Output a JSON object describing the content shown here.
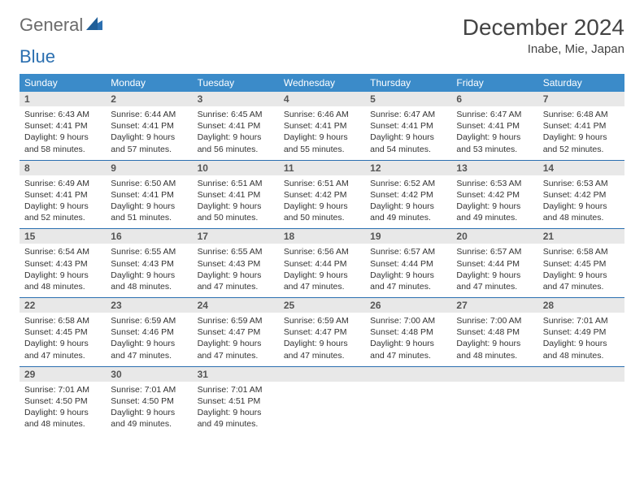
{
  "logo": {
    "general": "General",
    "blue": "Blue"
  },
  "title": "December 2024",
  "location": "Inabe, Mie, Japan",
  "colors": {
    "header_bg": "#3b8bc9",
    "divider": "#2b6fb0",
    "daynum_bg": "#e8e8e8",
    "logo_gray": "#6b6b6b",
    "logo_blue": "#2b6fb0"
  },
  "day_headers": [
    "Sunday",
    "Monday",
    "Tuesday",
    "Wednesday",
    "Thursday",
    "Friday",
    "Saturday"
  ],
  "weeks": [
    [
      {
        "n": "1",
        "sr": "6:43 AM",
        "ss": "4:41 PM",
        "dl": "9 hours and 58 minutes."
      },
      {
        "n": "2",
        "sr": "6:44 AM",
        "ss": "4:41 PM",
        "dl": "9 hours and 57 minutes."
      },
      {
        "n": "3",
        "sr": "6:45 AM",
        "ss": "4:41 PM",
        "dl": "9 hours and 56 minutes."
      },
      {
        "n": "4",
        "sr": "6:46 AM",
        "ss": "4:41 PM",
        "dl": "9 hours and 55 minutes."
      },
      {
        "n": "5",
        "sr": "6:47 AM",
        "ss": "4:41 PM",
        "dl": "9 hours and 54 minutes."
      },
      {
        "n": "6",
        "sr": "6:47 AM",
        "ss": "4:41 PM",
        "dl": "9 hours and 53 minutes."
      },
      {
        "n": "7",
        "sr": "6:48 AM",
        "ss": "4:41 PM",
        "dl": "9 hours and 52 minutes."
      }
    ],
    [
      {
        "n": "8",
        "sr": "6:49 AM",
        "ss": "4:41 PM",
        "dl": "9 hours and 52 minutes."
      },
      {
        "n": "9",
        "sr": "6:50 AM",
        "ss": "4:41 PM",
        "dl": "9 hours and 51 minutes."
      },
      {
        "n": "10",
        "sr": "6:51 AM",
        "ss": "4:41 PM",
        "dl": "9 hours and 50 minutes."
      },
      {
        "n": "11",
        "sr": "6:51 AM",
        "ss": "4:42 PM",
        "dl": "9 hours and 50 minutes."
      },
      {
        "n": "12",
        "sr": "6:52 AM",
        "ss": "4:42 PM",
        "dl": "9 hours and 49 minutes."
      },
      {
        "n": "13",
        "sr": "6:53 AM",
        "ss": "4:42 PM",
        "dl": "9 hours and 49 minutes."
      },
      {
        "n": "14",
        "sr": "6:53 AM",
        "ss": "4:42 PM",
        "dl": "9 hours and 48 minutes."
      }
    ],
    [
      {
        "n": "15",
        "sr": "6:54 AM",
        "ss": "4:43 PM",
        "dl": "9 hours and 48 minutes."
      },
      {
        "n": "16",
        "sr": "6:55 AM",
        "ss": "4:43 PM",
        "dl": "9 hours and 48 minutes."
      },
      {
        "n": "17",
        "sr": "6:55 AM",
        "ss": "4:43 PM",
        "dl": "9 hours and 47 minutes."
      },
      {
        "n": "18",
        "sr": "6:56 AM",
        "ss": "4:44 PM",
        "dl": "9 hours and 47 minutes."
      },
      {
        "n": "19",
        "sr": "6:57 AM",
        "ss": "4:44 PM",
        "dl": "9 hours and 47 minutes."
      },
      {
        "n": "20",
        "sr": "6:57 AM",
        "ss": "4:44 PM",
        "dl": "9 hours and 47 minutes."
      },
      {
        "n": "21",
        "sr": "6:58 AM",
        "ss": "4:45 PM",
        "dl": "9 hours and 47 minutes."
      }
    ],
    [
      {
        "n": "22",
        "sr": "6:58 AM",
        "ss": "4:45 PM",
        "dl": "9 hours and 47 minutes."
      },
      {
        "n": "23",
        "sr": "6:59 AM",
        "ss": "4:46 PM",
        "dl": "9 hours and 47 minutes."
      },
      {
        "n": "24",
        "sr": "6:59 AM",
        "ss": "4:47 PM",
        "dl": "9 hours and 47 minutes."
      },
      {
        "n": "25",
        "sr": "6:59 AM",
        "ss": "4:47 PM",
        "dl": "9 hours and 47 minutes."
      },
      {
        "n": "26",
        "sr": "7:00 AM",
        "ss": "4:48 PM",
        "dl": "9 hours and 47 minutes."
      },
      {
        "n": "27",
        "sr": "7:00 AM",
        "ss": "4:48 PM",
        "dl": "9 hours and 48 minutes."
      },
      {
        "n": "28",
        "sr": "7:01 AM",
        "ss": "4:49 PM",
        "dl": "9 hours and 48 minutes."
      }
    ],
    [
      {
        "n": "29",
        "sr": "7:01 AM",
        "ss": "4:50 PM",
        "dl": "9 hours and 48 minutes."
      },
      {
        "n": "30",
        "sr": "7:01 AM",
        "ss": "4:50 PM",
        "dl": "9 hours and 49 minutes."
      },
      {
        "n": "31",
        "sr": "7:01 AM",
        "ss": "4:51 PM",
        "dl": "9 hours and 49 minutes."
      },
      null,
      null,
      null,
      null
    ]
  ],
  "labels": {
    "sunrise": "Sunrise:",
    "sunset": "Sunset:",
    "daylight": "Daylight:"
  }
}
